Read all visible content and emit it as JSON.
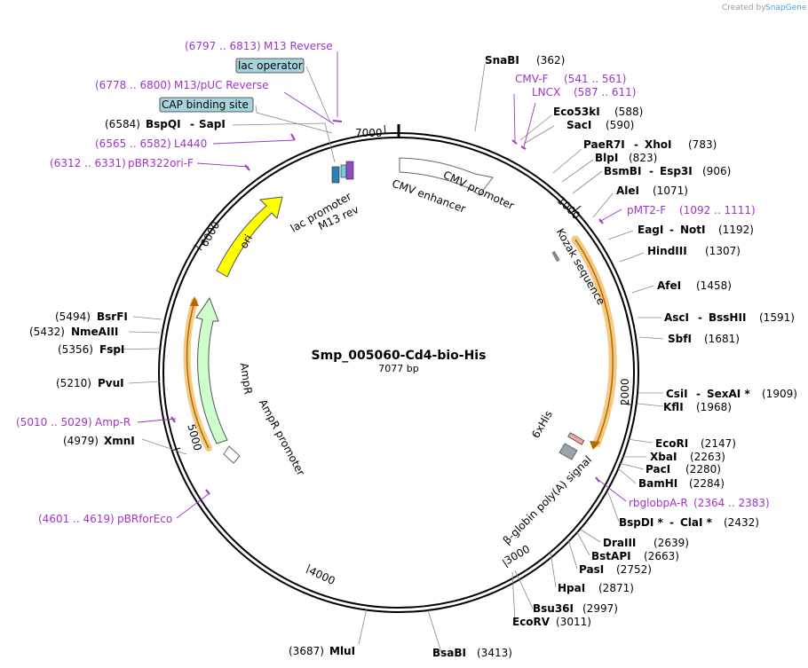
{
  "credit": {
    "prefix": "Created by",
    "brand": "SnapGene"
  },
  "plasmid": {
    "name": "Smp_005060-Cd4-bio-His",
    "size_label": "7077 bp",
    "length": 7077
  },
  "ticks": [
    "1000",
    "2000",
    "3000",
    "4000",
    "5000",
    "6000",
    "7000"
  ],
  "sites": [
    {
      "name": "SnaBI",
      "pos": "(362)"
    },
    {
      "name": "Eco53kI",
      "pos": "(588)"
    },
    {
      "name": "SacI",
      "pos": "(590)"
    },
    {
      "name": "PaeR7I",
      "name2": "XhoI",
      "pos": "(783)"
    },
    {
      "name": "BlpI",
      "pos": "(823)"
    },
    {
      "name": "BsmBI",
      "name2": "Esp3I",
      "pos": "(906)"
    },
    {
      "name": "AleI",
      "pos": "(1071)"
    },
    {
      "name": "EagI",
      "name2": "NotI",
      "pos": "(1192)"
    },
    {
      "name": "HindIII",
      "pos": "(1307)"
    },
    {
      "name": "AfeI",
      "pos": "(1458)"
    },
    {
      "name": "AscI",
      "name2": "BssHII",
      "pos": "(1591)"
    },
    {
      "name": "SbfI",
      "pos": "(1681)"
    },
    {
      "name": "CsiI",
      "name2": "SexAI *",
      "pos": "(1909)"
    },
    {
      "name": "KflI",
      "pos": "(1968)"
    },
    {
      "name": "EcoRI",
      "pos": "(2147)"
    },
    {
      "name": "XbaI",
      "pos": "(2263)"
    },
    {
      "name": "PacI",
      "pos": "(2280)"
    },
    {
      "name": "BamHI",
      "pos": "(2284)"
    },
    {
      "name": "BspDI *",
      "name2": "ClaI *",
      "pos": "(2432)"
    },
    {
      "name": "DraIII",
      "pos": "(2639)"
    },
    {
      "name": "BstAPI",
      "pos": "(2663)"
    },
    {
      "name": "PasI",
      "pos": "(2752)"
    },
    {
      "name": "HpaI",
      "pos": "(2871)"
    },
    {
      "name": "Bsu36I",
      "pos": "(2997)"
    },
    {
      "name": "EcoRV",
      "pos": "(3011)"
    },
    {
      "name": "BsaBI",
      "pos": "(3413)"
    },
    {
      "name": "MluI",
      "pos": "(3687)"
    },
    {
      "name": "XmnI",
      "pos": "(4979)"
    },
    {
      "name": "PvuI",
      "pos": "(5210)"
    },
    {
      "name": "FspI",
      "pos": "(5356)"
    },
    {
      "name": "NmeAIII",
      "pos": "(5432)"
    },
    {
      "name": "BsrFI",
      "pos": "(5494)"
    },
    {
      "name": "BspQI",
      "name2": "SapI",
      "pos": "(6584)"
    }
  ],
  "primers": [
    {
      "name": "M13 Reverse",
      "range": "(6797 .. 6813)"
    },
    {
      "name": "M13/pUC Reverse",
      "range": "(6778 .. 6800)"
    },
    {
      "name": "L4440",
      "range": "(6565 .. 6582)"
    },
    {
      "name": "pBR322ori-F",
      "range": "(6312 .. 6331)"
    },
    {
      "name": "CMV-F",
      "range": "(541 .. 561)"
    },
    {
      "name": "LNCX",
      "range": "(587 .. 611)"
    },
    {
      "name": "pMT2-F",
      "range": "(1092 .. 1111)"
    },
    {
      "name": "rbglobpA-R",
      "range": "(2364 .. 2383)"
    },
    {
      "name": "Amp-R",
      "range": "(5010 .. 5029)"
    },
    {
      "name": "pBRforEco",
      "range": "(4601 .. 4619)"
    }
  ],
  "boxed_features": {
    "lac_operator": "lac operator",
    "cap_site": "CAP binding site"
  },
  "features": {
    "cmv_enhancer": "CMV enhancer",
    "cmv_promoter": "CMV promoter",
    "kozak": "Kozak sequence",
    "sixhis": "6xHis",
    "bglobin": "β-globin poly(A) signal",
    "ampr": "AmpR",
    "ampr_promoter": "AmpR promoter",
    "ori": "ori",
    "lac_promoter": "lac promoter",
    "m13_rev": "M13 rev"
  },
  "colors": {
    "primer": "#a033c8",
    "ori": "#ffff00",
    "ampr": "#ccffcc",
    "orf_highlight": "#f3c983",
    "boxed_fill": "#a7d3dd"
  }
}
